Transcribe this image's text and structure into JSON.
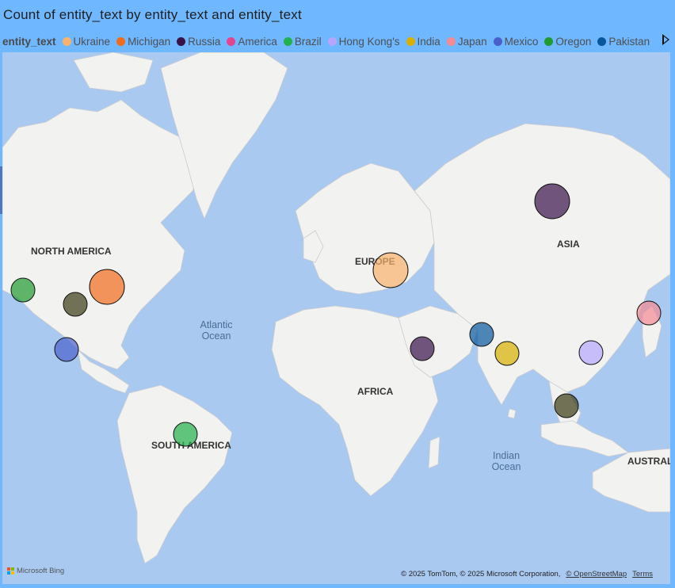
{
  "visual": {
    "title": "Count of entity_text by entity_text and entity_text"
  },
  "legend": {
    "heading": "entity_text",
    "items": [
      {
        "label": "Ukraine",
        "color": "#f9b26b"
      },
      {
        "label": "Michigan",
        "color": "#f26b1d"
      },
      {
        "label": "Russia",
        "color": "#3b114a"
      },
      {
        "label": "America",
        "color": "#e2448f"
      },
      {
        "label": "Brazil",
        "color": "#22b14c"
      },
      {
        "label": "Hong Kong's",
        "color": "#b7a6ff"
      },
      {
        "label": "India",
        "color": "#d9b000"
      },
      {
        "label": "Japan",
        "color": "#f48a93"
      },
      {
        "label": "Mexico",
        "color": "#4a5fcc"
      },
      {
        "label": "Oregon",
        "color": "#1f9b2f"
      },
      {
        "label": "Pakistan",
        "color": "#07579c"
      }
    ]
  },
  "map": {
    "continent_labels": [
      "NORTH AMERICA",
      "SOUTH AMERICA",
      "EUROPE",
      "AFRICA",
      "ASIA",
      "AUSTRAL"
    ],
    "ocean_labels": [
      [
        "Atlantic",
        "Ocean"
      ],
      [
        "Indian",
        "Ocean"
      ]
    ],
    "bubbles": [
      {
        "label": "Ukraine",
        "color": "#f9b26b",
        "size": "large"
      },
      {
        "label": "Michigan",
        "color": "#f26b1d",
        "size": "large"
      },
      {
        "label": "Russia",
        "color": "#3b114a",
        "size": "large"
      },
      {
        "label": "Brazil",
        "color": "#22b14c",
        "size": "small"
      },
      {
        "label": "Hong Kong's",
        "color": "#b7a6ff",
        "size": "small"
      },
      {
        "label": "India",
        "color": "#d9b000",
        "size": "small"
      },
      {
        "label": "Japan",
        "color": "#f48a93",
        "size": "small"
      },
      {
        "label": "Mexico",
        "color": "#4a5fcc",
        "size": "small"
      },
      {
        "label": "Oregon",
        "color": "#1f9b2f",
        "size": "small"
      },
      {
        "label": "Pakistan",
        "color": "#07579c",
        "size": "small"
      },
      {
        "label": "",
        "color": "#3b114a",
        "size": "small"
      },
      {
        "label": "",
        "color": "#3b3b12",
        "size": "small"
      },
      {
        "label": "",
        "color": "#3b3b12",
        "size": "small"
      }
    ]
  },
  "footer": {
    "brand": "Microsoft Bing",
    "copyright": "© 2025 TomTom, © 2025 Microsoft Corporation,",
    "osm_link": "© OpenStreetMap",
    "terms_link": "Terms"
  }
}
